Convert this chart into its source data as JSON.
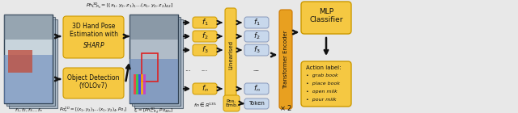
{
  "bg_color": "#e8e8e8",
  "yellow_box_color": "#F5C842",
  "light_blue_box_color": "#C8D8EC",
  "orange_bar_color": "#E8A020",
  "arrow_color": "#111111",
  "hand_pose_text1": "3D Hand Pose",
  "hand_pose_text2": "Estimation with",
  "hand_pose_text3": "$\\it{SHARP}$",
  "object_detect_text1": "Object Detection",
  "object_detect_text2": "(YOLOv7)",
  "linearised_label": "Linearised",
  "transformer_label": "Transformer Encoder",
  "mlp_label": "MLP\nClassifier",
  "pos_emb_label": "Pos.\nEmb.",
  "token_label": "Token",
  "x2_label": "$\\times$ 2",
  "formula_top": "$Ph^{3D}_{L,R_n} = [(x_1,y_2,z_1)_1\\ldots(x_1,y_2,z_2)_{42}]$",
  "formula_po": "$Po^{2D}_n = [(x_1,y_2)_1\\ldots(x_1,y_2)_4, Po_i]$",
  "formula_fn_label": "$f_1, f_2, f_3\\ldots f_n$",
  "formula_fn_def": "$f_n = [Ph^{3D}_{L,R_n}, Po_{2D_n}]$",
  "formula_fn_space": "$fn \\in \\mathbb{R}^{135}$",
  "f_labels": [
    "$f_1$",
    "$f_2$",
    "$f_3$",
    "...",
    "$f_n$"
  ],
  "action_items": [
    "grab book",
    "place book",
    "open milk",
    "pour milk"
  ],
  "image1_colors": [
    "#6688aa",
    "#7799bb",
    "#8daabf",
    "#c05050",
    "#e8c8a0"
  ],
  "frame_stack_color": "#444455",
  "frame_bg_color": "#99aabb"
}
